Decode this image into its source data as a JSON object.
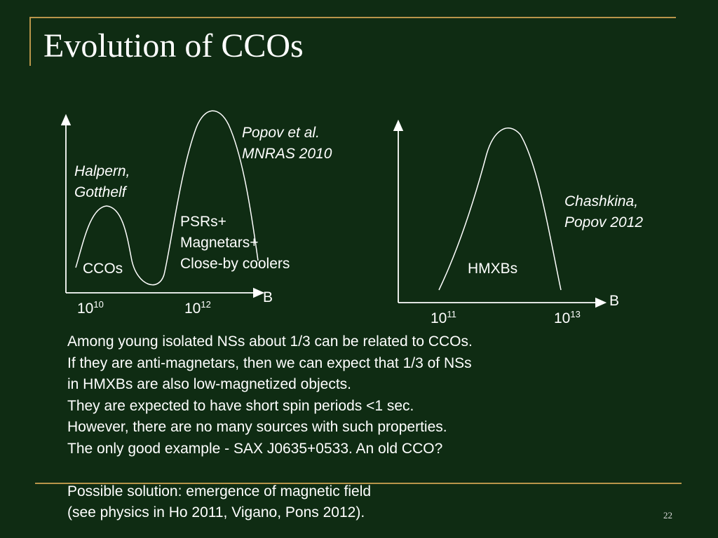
{
  "slide": {
    "title": "Evolution of CCOs",
    "page_number": "22"
  },
  "left_chart": {
    "x_axis_label": "B",
    "tick_1_base": "10",
    "tick_1_exp": "10",
    "tick_2_base": "10",
    "tick_2_exp": "12",
    "reference_1": [
      "Halpern,",
      "Gotthelf"
    ],
    "reference_2": [
      "Popov et al.",
      "MNRAS 2010"
    ],
    "peak_1_label": "CCOs",
    "peak_2_label": [
      "PSRs+",
      "Magnetars+",
      "Close-by coolers"
    ]
  },
  "right_chart": {
    "x_axis_label": "B",
    "tick_1_base": "10",
    "tick_1_exp": "11",
    "tick_2_base": "10",
    "tick_2_exp": "13",
    "reference": [
      "Chashkina,",
      "Popov 2012"
    ],
    "peak_label": "HMXBs"
  },
  "body_lines": [
    "Among young isolated NSs about 1/3 can be related to CCOs.",
    "If they are anti-magnetars, then we can expect that 1/3 of NSs",
    "in HMXBs are also low-magnetized objects.",
    "They are expected to have short spin periods <1 sec.",
    "However, there are no many sources with such properties.",
    "The only good example - SAX J0635+0533. An old CCO?",
    "",
    "Possible solution: emergence of magnetic field",
    "(see physics in Ho 2011, Vigano, Pons 2012)."
  ],
  "colors": {
    "background": "#0f2c13",
    "accent_lines": "#b8954a",
    "text": "#ffffff"
  }
}
